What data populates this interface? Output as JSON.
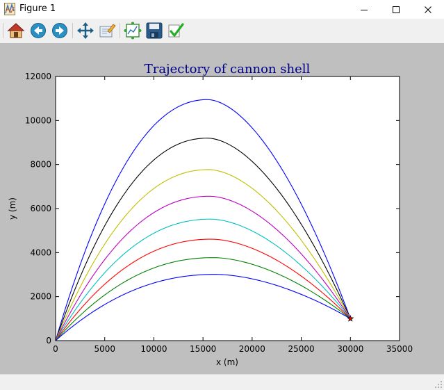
{
  "window": {
    "title": "Figure 1",
    "controls": [
      "minimize",
      "maximize",
      "close"
    ]
  },
  "toolbar": {
    "buttons": [
      "home-icon",
      "back-icon",
      "forward-icon",
      "pan-icon",
      "zoom-icon",
      "subplots-icon",
      "save-icon",
      "edit-icon"
    ]
  },
  "chart_data": {
    "type": "line",
    "title": "Trajectory of cannon shell",
    "xlabel": "x (m)",
    "ylabel": "y (m)",
    "xlim": [
      0,
      35000
    ],
    "ylim": [
      0,
      12000
    ],
    "xticks": [
      "0",
      "5000",
      "10000",
      "15000",
      "20000",
      "25000",
      "30000",
      "35000"
    ],
    "yticks": [
      "0",
      "2000",
      "4000",
      "6000",
      "8000",
      "10000",
      "12000"
    ],
    "target": {
      "x": 30000,
      "y": 1000,
      "marker": "star",
      "color": "#ff0000"
    },
    "series": [
      {
        "color": "#0000ff",
        "x": [
          0,
          15000,
          30000
        ],
        "y": [
          0,
          10950,
          1000
        ],
        "peak": {
          "x": 15500,
          "y": 10950
        }
      },
      {
        "color": "#000000",
        "x": [
          0,
          15000,
          30000
        ],
        "y": [
          0,
          9180,
          1000
        ],
        "peak": {
          "x": 15500,
          "y": 9200
        }
      },
      {
        "color": "#bfbf00",
        "x": [
          0,
          15000,
          30000
        ],
        "y": [
          0,
          7760,
          1000
        ],
        "peak": {
          "x": 15600,
          "y": 7770
        }
      },
      {
        "color": "#bf00bf",
        "x": [
          0,
          15000,
          30000
        ],
        "y": [
          0,
          6540,
          1000
        ],
        "peak": {
          "x": 15700,
          "y": 6560
        }
      },
      {
        "color": "#00bfbf",
        "x": [
          0,
          15000,
          30000
        ],
        "y": [
          0,
          5500,
          1000
        ],
        "peak": {
          "x": 15800,
          "y": 5520
        }
      },
      {
        "color": "#ff0000",
        "x": [
          0,
          15000,
          30000
        ],
        "y": [
          0,
          4590,
          1000
        ],
        "peak": {
          "x": 15900,
          "y": 4610
        }
      },
      {
        "color": "#008000",
        "x": [
          0,
          15000,
          30000
        ],
        "y": [
          0,
          3760,
          1000
        ],
        "peak": {
          "x": 16100,
          "y": 3770
        }
      },
      {
        "color": "#0000ff",
        "x": [
          0,
          15000,
          30000
        ],
        "y": [
          0,
          2990,
          1000
        ],
        "peak": {
          "x": 16300,
          "y": 3010
        }
      }
    ],
    "grid": false,
    "legend": "none"
  }
}
